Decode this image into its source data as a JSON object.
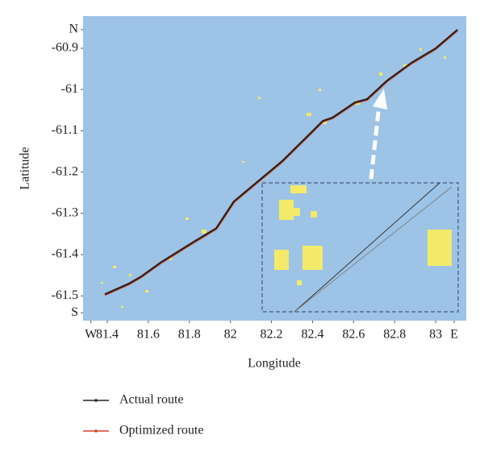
{
  "chart_data": {
    "type": "line",
    "x_label": "Longitude",
    "y_label": "Latitude",
    "x": [
      81.388,
      81.506,
      81.565,
      81.663,
      81.821,
      81.931,
      82.017,
      82.135,
      82.253,
      82.371,
      82.45,
      82.497,
      82.607,
      82.666,
      82.764,
      82.882,
      83.0,
      83.106
    ],
    "series": [
      {
        "name": "Actual route",
        "color": "#222222",
        "values": [
          -61.496,
          -61.47,
          -61.453,
          -61.418,
          -61.369,
          -61.336,
          -61.271,
          -61.222,
          -61.173,
          -61.115,
          -61.076,
          -61.068,
          -61.031,
          -61.023,
          -60.978,
          -60.935,
          -60.9,
          -60.855
        ]
      },
      {
        "name": "Optimized route",
        "color": "#d0401a",
        "values": [
          -61.497,
          -61.471,
          -61.454,
          -61.419,
          -61.37,
          -61.337,
          -61.272,
          -61.223,
          -61.174,
          -61.116,
          -61.077,
          -61.069,
          -61.032,
          -61.024,
          -60.979,
          -60.936,
          -60.901,
          -60.856
        ]
      }
    ],
    "xlim": [
      81.282,
      83.149
    ],
    "ylim": [
      -61.56,
      -60.822
    ],
    "xticks": [
      {
        "value": 81.32,
        "label": "W"
      },
      81.4,
      81.6,
      81.8,
      82.0,
      82.2,
      82.4,
      82.6,
      82.8,
      83.0,
      {
        "value": 83.09,
        "label": "E"
      }
    ],
    "yticks": [
      {
        "value": -60.855,
        "label": "N"
      },
      -60.9,
      -61.0,
      -61.1,
      -61.2,
      -61.3,
      -61.4,
      -61.5,
      {
        "value": -61.541,
        "label": "S"
      }
    ],
    "legend": "bottom-left"
  }
}
